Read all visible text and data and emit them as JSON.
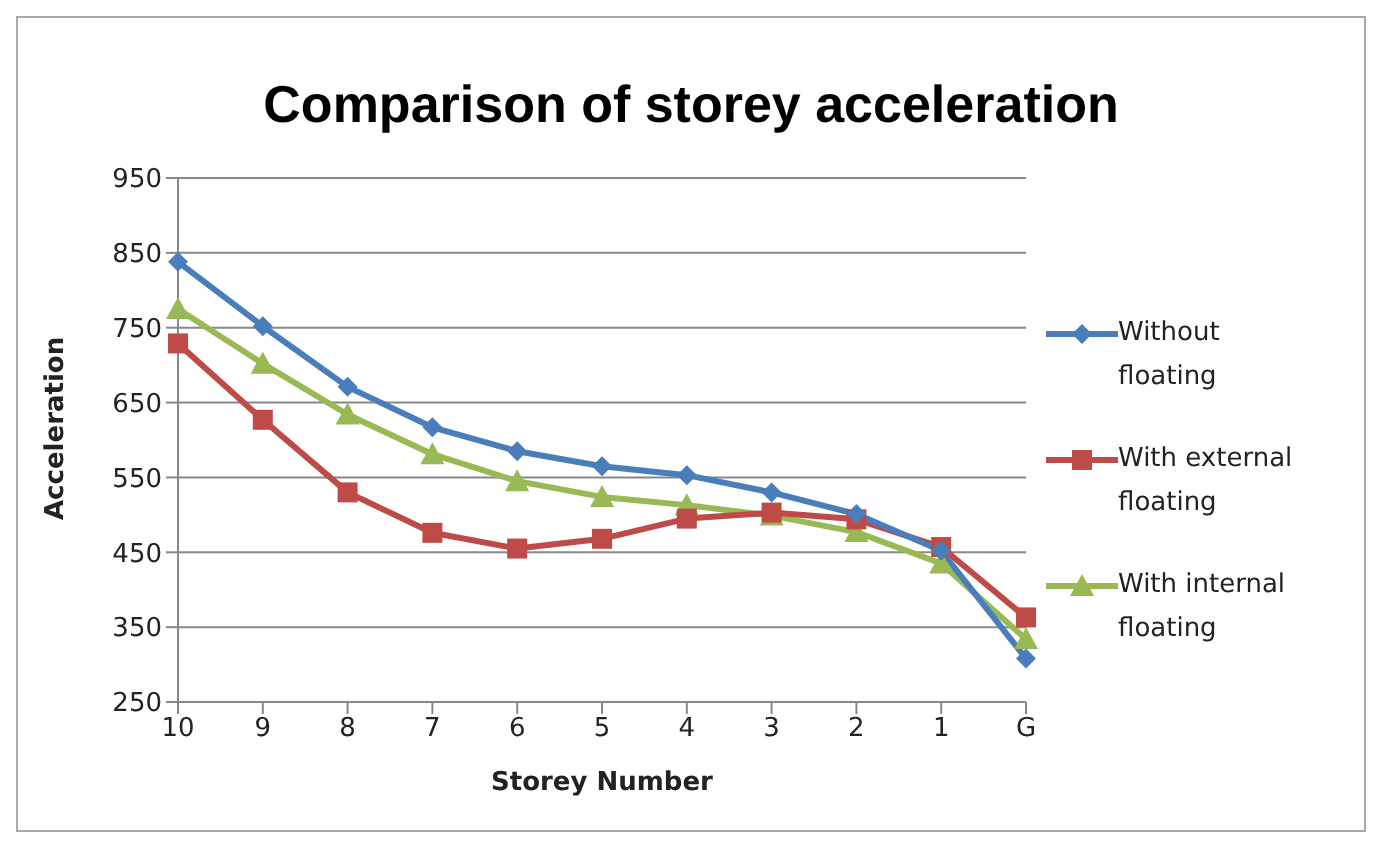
{
  "chart_data": {
    "type": "line",
    "title": "Comparison of storey acceleration",
    "xlabel": "Storey Number",
    "ylabel": "Acceleration",
    "categories": [
      "10",
      "9",
      "8",
      "7",
      "6",
      "5",
      "4",
      "3",
      "2",
      "1",
      "G"
    ],
    "series": [
      {
        "name": "Without floating",
        "color": "#4a7ebb",
        "marker": "diamond",
        "values": [
          838,
          752,
          671,
          617,
          585,
          565,
          553,
          530,
          501,
          452,
          308
        ]
      },
      {
        "name": "With external floating",
        "color": "#be4b48",
        "marker": "square",
        "values": [
          729,
          627,
          530,
          476,
          455,
          468,
          495,
          503,
          494,
          457,
          363
        ]
      },
      {
        "name": "With internal floating",
        "color": "#98b954",
        "marker": "triangle",
        "values": [
          775,
          702,
          634,
          581,
          545,
          524,
          513,
          499,
          477,
          435,
          334
        ]
      }
    ],
    "ylim": [
      250,
      950
    ],
    "yticks": [
      250,
      350,
      450,
      550,
      650,
      750,
      850,
      950
    ],
    "grid": "y",
    "legend": "right",
    "line_style": "solid"
  }
}
